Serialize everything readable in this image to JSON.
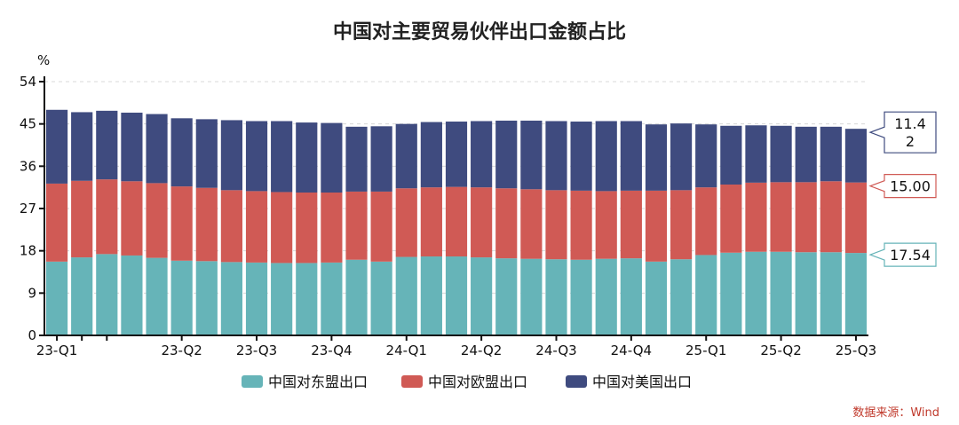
{
  "chart_data": {
    "type": "bar",
    "stacked": true,
    "title": "中国对主要贸易伙伴出口金额占比",
    "y_unit": "%",
    "ylim": [
      0,
      54
    ],
    "yticks": [
      "0",
      "9",
      "18",
      "27",
      "36",
      "45",
      "54"
    ],
    "xtick_labels": [
      "23-Q1",
      "23-Q2",
      "23-Q3",
      "23-Q4",
      "24-Q1",
      "24-Q2",
      "24-Q3",
      "24-Q4",
      "25-Q1",
      "25-Q2",
      "25-Q3"
    ],
    "legend_position": "bottom",
    "grid": "horizontal-dashed",
    "series": [
      {
        "name": "中国对东盟出口",
        "color": "#66b4b8",
        "values": [
          15.7,
          16.6,
          17.3,
          17.0,
          16.5,
          15.9,
          15.8,
          15.6,
          15.5,
          15.4,
          15.4,
          15.5,
          16.1,
          15.7,
          16.7,
          16.8,
          16.8,
          16.6,
          16.4,
          16.3,
          16.2,
          16.1,
          16.3,
          16.4,
          15.7,
          16.2,
          17.1,
          17.6,
          17.8,
          17.8,
          17.7,
          17.7,
          17.54
        ]
      },
      {
        "name": "中国对欧盟出口",
        "color": "#d05a55",
        "values": [
          16.6,
          16.3,
          15.9,
          15.8,
          15.9,
          15.8,
          15.6,
          15.3,
          15.2,
          15.1,
          15.0,
          14.9,
          14.5,
          14.9,
          14.6,
          14.7,
          14.8,
          14.9,
          14.9,
          14.8,
          14.7,
          14.7,
          14.4,
          14.4,
          15.1,
          14.7,
          14.4,
          14.5,
          14.7,
          14.8,
          14.9,
          15.1,
          15.0
        ]
      },
      {
        "name": "中国对美国出口",
        "color": "#3f4b7f",
        "values": [
          15.7,
          14.6,
          14.6,
          14.6,
          14.7,
          14.5,
          14.6,
          14.9,
          14.9,
          15.1,
          14.9,
          14.8,
          13.8,
          13.9,
          13.7,
          13.9,
          13.9,
          14.1,
          14.4,
          14.6,
          14.7,
          14.7,
          14.9,
          14.8,
          14.1,
          14.2,
          13.4,
          12.5,
          12.2,
          12.0,
          11.8,
          11.6,
          11.42
        ]
      }
    ],
    "callouts": [
      {
        "series": "中国对美国出口",
        "lines": [
          "11.4",
          "2"
        ]
      },
      {
        "series": "中国对欧盟出口",
        "lines": [
          "15.00"
        ]
      },
      {
        "series": "中国对东盟出口",
        "lines": [
          "17.54"
        ]
      }
    ]
  },
  "source_note": "数据来源：Wind"
}
